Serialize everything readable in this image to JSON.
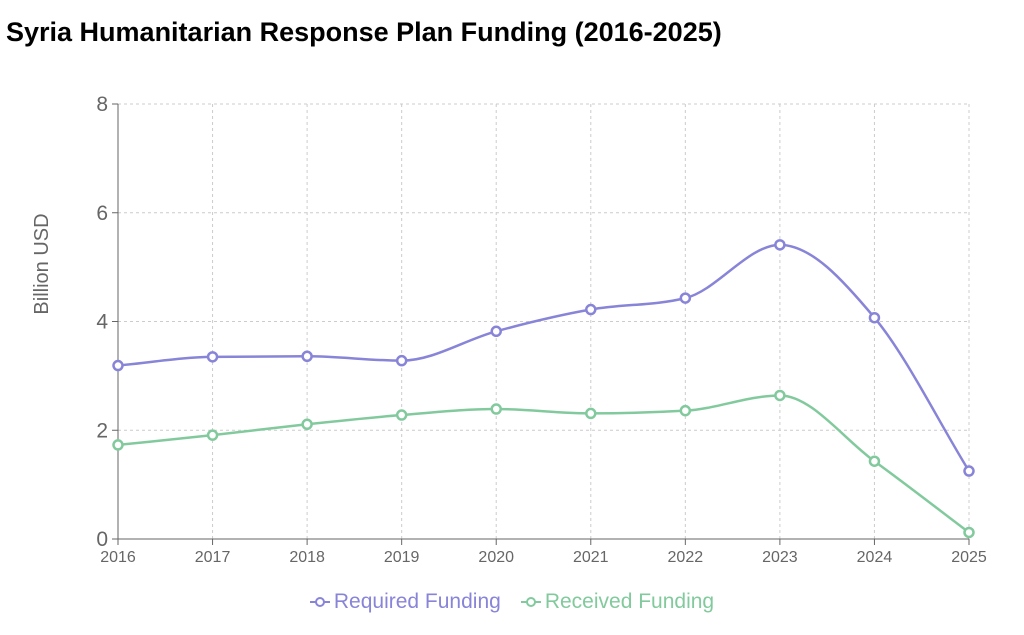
{
  "chart_data": {
    "type": "line",
    "title": "Syria Humanitarian Response Plan Funding (2016-2025)",
    "ylabel": "Billion USD",
    "xlabel": "",
    "x": [
      "2016",
      "2017",
      "2018",
      "2019",
      "2020",
      "2021",
      "2022",
      "2023",
      "2024",
      "2025"
    ],
    "ylim": [
      0,
      8
    ],
    "yticks": [
      0,
      2,
      4,
      6,
      8
    ],
    "grid": true,
    "legend_position": "bottom",
    "series": [
      {
        "name": "Required Funding",
        "color": "#8884d8",
        "values": [
          3.19,
          3.35,
          3.36,
          3.28,
          3.82,
          4.22,
          4.43,
          5.41,
          4.07,
          1.25
        ]
      },
      {
        "name": "Received Funding",
        "color": "#82ca9d",
        "values": [
          1.73,
          1.91,
          2.11,
          2.28,
          2.39,
          2.31,
          2.36,
          2.64,
          1.43,
          0.12
        ]
      }
    ]
  }
}
